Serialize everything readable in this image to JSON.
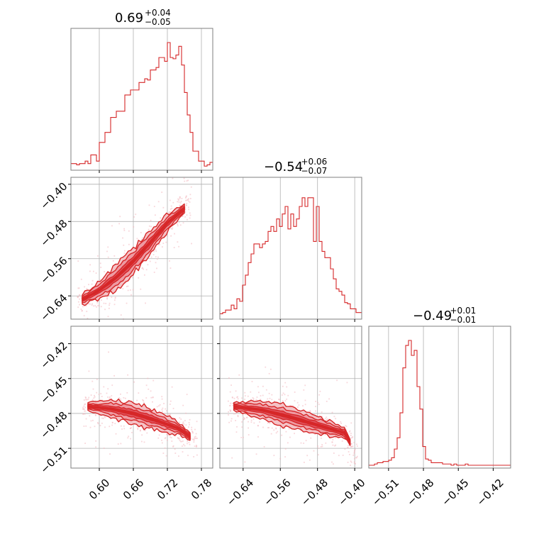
{
  "chart_data": {
    "type": "corner",
    "color": "#d62728",
    "fill_color": "#f4c2c6",
    "grid": true,
    "parameters": [
      {
        "range": [
          0.55,
          0.8
        ],
        "ticks": [
          0.6,
          0.66,
          0.72,
          0.78
        ],
        "tick_labels": [
          "0.60",
          "0.66",
          "0.72",
          "0.78"
        ]
      },
      {
        "range": [
          -0.69,
          -0.385
        ],
        "ticks": [
          -0.4,
          -0.48,
          -0.56,
          -0.64
        ],
        "tick_labels": [
          "−0.40",
          "−0.48",
          "−0.56",
          "−0.64"
        ]
      },
      {
        "range": [
          -0.527,
          -0.405
        ],
        "ticks": [
          -0.42,
          -0.45,
          -0.48,
          -0.51
        ],
        "tick_labels": [
          "−0.42",
          "−0.45",
          "−0.48",
          "−0.51"
        ]
      }
    ],
    "titles": [
      {
        "median": "0.69",
        "plus": "+0.04",
        "minus": "−0.05"
      },
      {
        "median": "−0.54",
        "plus": "+0.06",
        "minus": "−0.07"
      },
      {
        "median": "−0.49",
        "plus": "+0.01",
        "minus": "−0.01"
      }
    ],
    "histograms": [
      {
        "param": 0,
        "range": [
          0.55,
          0.8
        ],
        "counts": [
          0.03,
          0.03,
          0.02,
          0.03,
          0.03,
          0.05,
          0.03,
          0.1,
          0.1,
          0.05,
          0.2,
          0.2,
          0.28,
          0.28,
          0.4,
          0.4,
          0.45,
          0.45,
          0.45,
          0.58,
          0.58,
          0.62,
          0.62,
          0.62,
          0.68,
          0.68,
          0.71,
          0.7,
          0.78,
          0.78,
          0.8,
          0.88,
          0.88,
          0.85,
          1.0,
          0.88,
          0.87,
          0.9,
          0.97,
          0.82,
          0.6,
          0.42,
          0.28,
          0.13,
          0.13,
          0.05,
          0.05,
          0.01,
          0.02,
          0.04
        ]
      },
      {
        "param": 1,
        "range": [
          -0.69,
          -0.385
        ],
        "counts": [
          0.02,
          0.03,
          0.05,
          0.05,
          0.09,
          0.06,
          0.14,
          0.12,
          0.25,
          0.33,
          0.43,
          0.5,
          0.58,
          0.58,
          0.55,
          0.58,
          0.6,
          0.68,
          0.72,
          0.68,
          0.78,
          0.72,
          0.82,
          0.88,
          0.7,
          0.82,
          0.72,
          0.78,
          0.88,
          0.95,
          0.88,
          0.95,
          0.95,
          0.6,
          0.88,
          0.6,
          0.52,
          0.47,
          0.47,
          0.38,
          0.3,
          0.22,
          0.2,
          0.17,
          0.11,
          0.1,
          0.06,
          0.06,
          0.03,
          0.03
        ]
      },
      {
        "param": 2,
        "range": [
          -0.527,
          -0.405
        ],
        "counts": [
          0.0,
          0.0,
          0.01,
          0.02,
          0.02,
          0.03,
          0.03,
          0.04,
          0.06,
          0.13,
          0.22,
          0.42,
          0.78,
          0.96,
          1.0,
          0.88,
          0.92,
          0.63,
          0.45,
          0.15,
          0.05,
          0.04,
          0.02,
          0.02,
          0.02,
          0.02,
          0.01,
          0.01,
          0.01,
          0.0,
          0.01,
          0.0,
          0.0,
          0.0,
          0.01,
          0.0,
          0.0,
          0.0,
          0.0,
          0.0,
          0.0,
          0.0,
          0.0,
          0.0,
          0.0,
          0.0,
          0.0,
          0.0,
          0.0,
          0.0
        ]
      }
    ],
    "scatter_panels": [
      {
        "x_param": 0,
        "y_param": 1,
        "x_spine": [
          0.57,
          0.6,
          0.63,
          0.66,
          0.69,
          0.72,
          0.75
        ],
        "y_spine": [
          -0.648,
          -0.628,
          -0.6,
          -0.565,
          -0.525,
          -0.483,
          -0.452
        ],
        "y_scatter": 0.012
      },
      {
        "x_param": 0,
        "y_param": 2,
        "x_spine": [
          0.58,
          0.62,
          0.66,
          0.7,
          0.74,
          0.76
        ],
        "y_spine": [
          -0.474,
          -0.476,
          -0.48,
          -0.486,
          -0.493,
          -0.5
        ],
        "y_scatter": 0.004
      },
      {
        "x_param": 1,
        "y_param": 2,
        "x_spine": [
          -0.66,
          -0.6,
          -0.54,
          -0.48,
          -0.42,
          -0.41
        ],
        "y_spine": [
          -0.474,
          -0.477,
          -0.483,
          -0.49,
          -0.497,
          -0.505
        ],
        "y_scatter": 0.004
      }
    ]
  }
}
